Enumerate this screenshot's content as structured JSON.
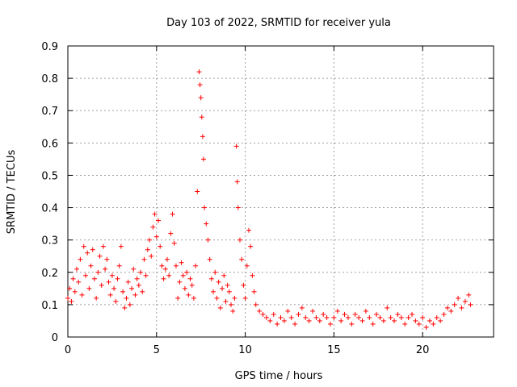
{
  "chart_data": {
    "type": "scatter",
    "title": "Day 103 of 2022, SRMTID for receiver yula",
    "xlabel": "GPS time / hours",
    "ylabel": "SRMTID / TECUs",
    "xlim": [
      0,
      24
    ],
    "ylim": [
      0,
      0.9
    ],
    "grid": true,
    "marker": "+",
    "color": "#ff0000",
    "xticks": [
      0,
      5,
      10,
      15,
      20
    ],
    "xtick_labels": [
      "0",
      "5",
      "10",
      "15",
      "20"
    ],
    "yticks": [
      0,
      0.1,
      0.2,
      0.3,
      0.4,
      0.5,
      0.6,
      0.7,
      0.8,
      0.9
    ],
    "ytick_labels": [
      "0",
      "0.1",
      "0.2",
      "0.3",
      "0.4",
      "0.5",
      "0.6",
      "0.7",
      "0.8",
      "0.9"
    ],
    "series": [
      {
        "name": "SRMTID",
        "points": [
          [
            0.0,
            0.12
          ],
          [
            0.1,
            0.15
          ],
          [
            0.2,
            0.11
          ],
          [
            0.3,
            0.18
          ],
          [
            0.4,
            0.14
          ],
          [
            0.5,
            0.21
          ],
          [
            0.6,
            0.17
          ],
          [
            0.7,
            0.24
          ],
          [
            0.8,
            0.13
          ],
          [
            0.9,
            0.28
          ],
          [
            1.0,
            0.19
          ],
          [
            1.1,
            0.26
          ],
          [
            1.2,
            0.15
          ],
          [
            1.3,
            0.22
          ],
          [
            1.4,
            0.27
          ],
          [
            1.5,
            0.18
          ],
          [
            1.6,
            0.12
          ],
          [
            1.7,
            0.2
          ],
          [
            1.8,
            0.25
          ],
          [
            1.9,
            0.16
          ],
          [
            2.0,
            0.28
          ],
          [
            2.1,
            0.21
          ],
          [
            2.2,
            0.24
          ],
          [
            2.3,
            0.17
          ],
          [
            2.4,
            0.13
          ],
          [
            2.5,
            0.19
          ],
          [
            2.6,
            0.15
          ],
          [
            2.7,
            0.11
          ],
          [
            2.8,
            0.18
          ],
          [
            2.9,
            0.22
          ],
          [
            3.0,
            0.28
          ],
          [
            3.1,
            0.14
          ],
          [
            3.2,
            0.09
          ],
          [
            3.3,
            0.12
          ],
          [
            3.4,
            0.17
          ],
          [
            3.5,
            0.1
          ],
          [
            3.6,
            0.15
          ],
          [
            3.7,
            0.21
          ],
          [
            3.8,
            0.13
          ],
          [
            3.9,
            0.18
          ],
          [
            4.0,
            0.16
          ],
          [
            4.1,
            0.2
          ],
          [
            4.2,
            0.14
          ],
          [
            4.3,
            0.24
          ],
          [
            4.4,
            0.19
          ],
          [
            4.5,
            0.27
          ],
          [
            4.6,
            0.3
          ],
          [
            4.7,
            0.25
          ],
          [
            4.8,
            0.34
          ],
          [
            4.9,
            0.38
          ],
          [
            5.0,
            0.31
          ],
          [
            5.1,
            0.36
          ],
          [
            5.2,
            0.28
          ],
          [
            5.3,
            0.22
          ],
          [
            5.4,
            0.18
          ],
          [
            5.5,
            0.21
          ],
          [
            5.6,
            0.24
          ],
          [
            5.7,
            0.19
          ],
          [
            5.8,
            0.32
          ],
          [
            5.9,
            0.38
          ],
          [
            6.0,
            0.29
          ],
          [
            6.1,
            0.22
          ],
          [
            6.2,
            0.12
          ],
          [
            6.3,
            0.17
          ],
          [
            6.4,
            0.23
          ],
          [
            6.5,
            0.19
          ],
          [
            6.6,
            0.15
          ],
          [
            6.7,
            0.2
          ],
          [
            6.8,
            0.13
          ],
          [
            6.9,
            0.18
          ],
          [
            7.0,
            0.16
          ],
          [
            7.1,
            0.12
          ],
          [
            7.2,
            0.22
          ],
          [
            7.3,
            0.45
          ],
          [
            7.4,
            0.82
          ],
          [
            7.45,
            0.78
          ],
          [
            7.5,
            0.74
          ],
          [
            7.55,
            0.68
          ],
          [
            7.6,
            0.62
          ],
          [
            7.65,
            0.55
          ],
          [
            7.7,
            0.4
          ],
          [
            7.8,
            0.35
          ],
          [
            7.9,
            0.3
          ],
          [
            8.0,
            0.24
          ],
          [
            8.1,
            0.18
          ],
          [
            8.2,
            0.14
          ],
          [
            8.3,
            0.2
          ],
          [
            8.4,
            0.12
          ],
          [
            8.5,
            0.17
          ],
          [
            8.6,
            0.09
          ],
          [
            8.7,
            0.15
          ],
          [
            8.8,
            0.19
          ],
          [
            8.9,
            0.11
          ],
          [
            9.0,
            0.16
          ],
          [
            9.1,
            0.14
          ],
          [
            9.2,
            0.1
          ],
          [
            9.3,
            0.08
          ],
          [
            9.4,
            0.12
          ],
          [
            9.5,
            0.59
          ],
          [
            9.55,
            0.48
          ],
          [
            9.6,
            0.4
          ],
          [
            9.7,
            0.3
          ],
          [
            9.8,
            0.24
          ],
          [
            9.9,
            0.16
          ],
          [
            10.0,
            0.12
          ],
          [
            10.1,
            0.22
          ],
          [
            10.2,
            0.33
          ],
          [
            10.3,
            0.28
          ],
          [
            10.4,
            0.19
          ],
          [
            10.5,
            0.14
          ],
          [
            10.6,
            0.1
          ],
          [
            10.8,
            0.08
          ],
          [
            11.0,
            0.07
          ],
          [
            11.2,
            0.06
          ],
          [
            11.4,
            0.05
          ],
          [
            11.6,
            0.07
          ],
          [
            11.8,
            0.04
          ],
          [
            12.0,
            0.06
          ],
          [
            12.2,
            0.05
          ],
          [
            12.4,
            0.08
          ],
          [
            12.6,
            0.06
          ],
          [
            12.8,
            0.04
          ],
          [
            13.0,
            0.07
          ],
          [
            13.2,
            0.09
          ],
          [
            13.4,
            0.06
          ],
          [
            13.6,
            0.05
          ],
          [
            13.8,
            0.08
          ],
          [
            14.0,
            0.06
          ],
          [
            14.2,
            0.05
          ],
          [
            14.4,
            0.07
          ],
          [
            14.6,
            0.06
          ],
          [
            14.8,
            0.04
          ],
          [
            15.0,
            0.06
          ],
          [
            15.2,
            0.08
          ],
          [
            15.4,
            0.05
          ],
          [
            15.6,
            0.07
          ],
          [
            15.8,
            0.06
          ],
          [
            16.0,
            0.04
          ],
          [
            16.2,
            0.07
          ],
          [
            16.4,
            0.06
          ],
          [
            16.6,
            0.05
          ],
          [
            16.8,
            0.08
          ],
          [
            17.0,
            0.06
          ],
          [
            17.2,
            0.04
          ],
          [
            17.4,
            0.07
          ],
          [
            17.6,
            0.06
          ],
          [
            17.8,
            0.05
          ],
          [
            18.0,
            0.09
          ],
          [
            18.2,
            0.06
          ],
          [
            18.4,
            0.05
          ],
          [
            18.6,
            0.07
          ],
          [
            18.8,
            0.06
          ],
          [
            19.0,
            0.04
          ],
          [
            19.2,
            0.06
          ],
          [
            19.4,
            0.07
          ],
          [
            19.6,
            0.05
          ],
          [
            19.8,
            0.04
          ],
          [
            20.0,
            0.06
          ],
          [
            20.2,
            0.03
          ],
          [
            20.4,
            0.05
          ],
          [
            20.6,
            0.04
          ],
          [
            20.8,
            0.06
          ],
          [
            21.0,
            0.05
          ],
          [
            21.2,
            0.07
          ],
          [
            21.4,
            0.09
          ],
          [
            21.6,
            0.08
          ],
          [
            21.8,
            0.1
          ],
          [
            22.0,
            0.12
          ],
          [
            22.2,
            0.09
          ],
          [
            22.4,
            0.11
          ],
          [
            22.6,
            0.13
          ],
          [
            22.7,
            0.1
          ]
        ]
      }
    ]
  }
}
